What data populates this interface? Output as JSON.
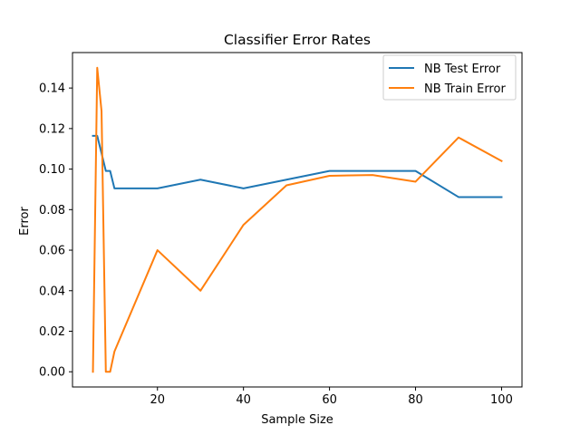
{
  "chart_data": {
    "type": "line",
    "title": "Classifier Error Rates",
    "xlabel": "Sample Size",
    "ylabel": "Error",
    "xlim": [
      0.25,
      104.75
    ],
    "ylim": [
      -0.0075,
      0.1575
    ],
    "xticks": [
      20,
      40,
      60,
      80,
      100
    ],
    "yticks": [
      0.0,
      0.02,
      0.04,
      0.06,
      0.08,
      0.1,
      0.12,
      0.14
    ],
    "xtick_labels": [
      "20",
      "40",
      "60",
      "80",
      "100"
    ],
    "ytick_labels": [
      "0.00",
      "0.02",
      "0.04",
      "0.06",
      "0.08",
      "0.10",
      "0.12",
      "0.14"
    ],
    "grid": false,
    "legend_position": "top-right",
    "series": [
      {
        "name": "NB Test Error",
        "color": "#1f77b4",
        "x": [
          5,
          6,
          7,
          8,
          9,
          10,
          20,
          30,
          40,
          50,
          60,
          70,
          80,
          90,
          100
        ],
        "y": [
          0.1164,
          0.1164,
          0.1078,
          0.0991,
          0.0991,
          0.0905,
          0.0905,
          0.0948,
          0.0905,
          0.0948,
          0.0991,
          0.0991,
          0.0991,
          0.0862,
          0.0862
        ]
      },
      {
        "name": "NB Train Error",
        "color": "#ff7f0e",
        "x": [
          5,
          6,
          7,
          8,
          9,
          10,
          20,
          30,
          40,
          50,
          60,
          70,
          80,
          90,
          100
        ],
        "y": [
          0.0,
          0.15,
          0.1286,
          0.0,
          0.0,
          0.01,
          0.06,
          0.04,
          0.0725,
          0.092,
          0.0967,
          0.0971,
          0.0938,
          0.1156,
          0.104
        ]
      }
    ]
  }
}
